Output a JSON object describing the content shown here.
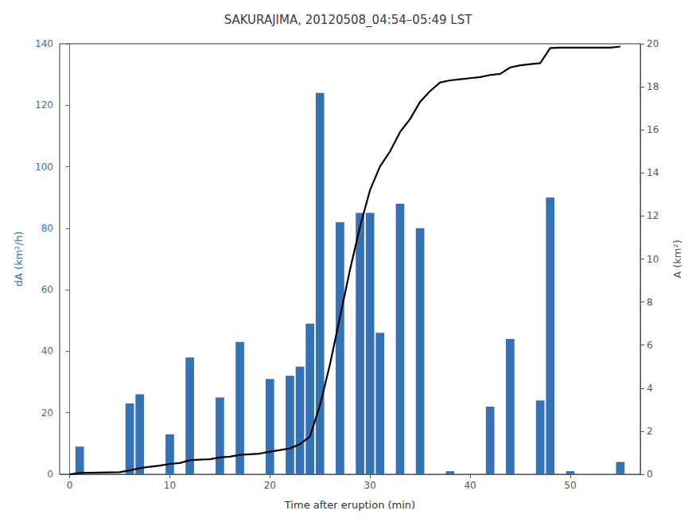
{
  "chart_data": {
    "type": "bar",
    "title": "SAKURAJIMA, 20120508_04:54–05:49 LST",
    "xlabel": "Time after eruption (min)",
    "ylabel": "dA (km²/h)",
    "y2label": "A (km²)",
    "series": [
      {
        "type": "bar",
        "color": "#3472b5",
        "x": [
          1,
          6,
          7,
          10,
          12,
          15,
          17,
          20,
          22,
          23,
          24,
          25,
          27,
          29,
          30,
          31,
          33,
          35,
          38,
          42,
          44,
          47,
          48,
          50,
          55
        ],
        "values": [
          9,
          23,
          26,
          13,
          38,
          25,
          43,
          31,
          32,
          35,
          49,
          124,
          82,
          85,
          85,
          46,
          88,
          80,
          1,
          22,
          44,
          24,
          90,
          1,
          4
        ]
      },
      {
        "type": "line",
        "color": "#000000",
        "axis": "y2",
        "x": [
          0,
          1,
          2,
          3,
          4,
          5,
          6,
          7,
          8,
          9,
          10,
          11,
          12,
          13,
          14,
          15,
          16,
          17,
          18,
          19,
          20,
          21,
          22,
          23,
          24,
          25,
          26,
          27,
          28,
          29,
          30,
          31,
          32,
          33,
          34,
          35,
          36,
          37,
          38,
          39,
          40,
          41,
          42,
          43,
          44,
          45,
          46,
          47,
          48,
          49,
          50,
          51,
          52,
          53,
          54,
          55
        ],
        "values": [
          0.0,
          0.06,
          0.07,
          0.08,
          0.09,
          0.1,
          0.18,
          0.28,
          0.35,
          0.4,
          0.48,
          0.52,
          0.65,
          0.68,
          0.7,
          0.78,
          0.82,
          0.9,
          0.93,
          0.96,
          1.05,
          1.12,
          1.2,
          1.4,
          1.75,
          3.2,
          5.1,
          7.3,
          9.5,
          11.5,
          13.2,
          14.3,
          15.0,
          15.9,
          16.5,
          17.3,
          17.8,
          18.2,
          18.3,
          18.35,
          18.4,
          18.45,
          18.55,
          18.6,
          18.9,
          19.0,
          19.05,
          19.1,
          19.8,
          19.82,
          19.82,
          19.82,
          19.82,
          19.82,
          19.82,
          19.87
        ]
      }
    ],
    "xlim": [
      -1,
      57
    ],
    "xticks": [
      0,
      10,
      20,
      30,
      40,
      50
    ],
    "ylim": [
      0,
      140
    ],
    "yticks": [
      0,
      20,
      40,
      60,
      80,
      100,
      120,
      140
    ],
    "y2lim": [
      0,
      20
    ],
    "y2ticks": [
      0,
      2,
      4,
      6,
      8,
      10,
      12,
      14,
      16,
      18,
      20
    ],
    "grid": false
  }
}
